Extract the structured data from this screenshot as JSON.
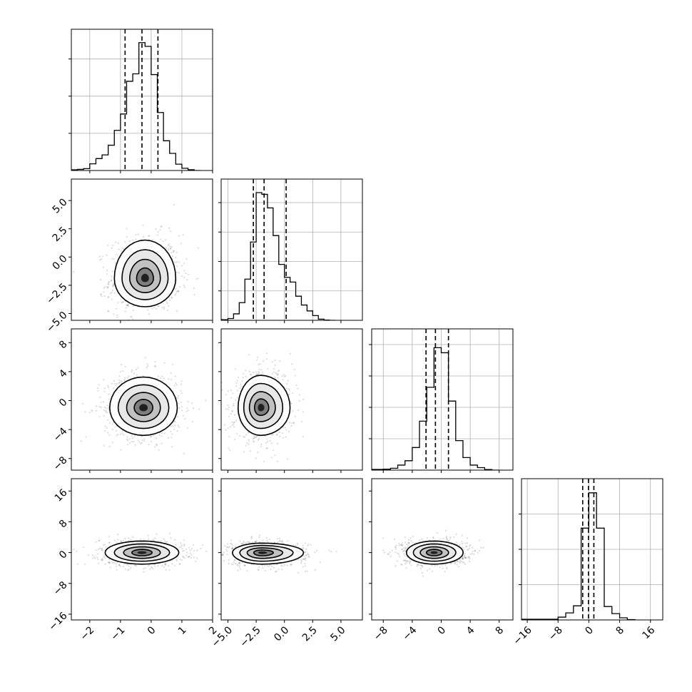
{
  "chart_data": {
    "type": "corner",
    "title": "",
    "grid": true,
    "num_params": 4,
    "quantile_lines": "dashed",
    "parameters": [
      {
        "index": 0,
        "range": [
          -2.6,
          2.0
        ],
        "ticks": [
          -2,
          -1,
          0,
          1,
          2
        ],
        "tick_labels": [
          "−2",
          "−1",
          "0",
          "1",
          "2"
        ],
        "quantiles": [
          -0.85,
          -0.3,
          0.22
        ],
        "hist_bins": [
          -2.4,
          -2.2,
          -2.0,
          -1.8,
          -1.6,
          -1.4,
          -1.2,
          -1.0,
          -0.8,
          -0.6,
          -0.4,
          -0.2,
          0.0,
          0.2,
          0.4,
          0.6,
          0.8,
          1.0,
          1.2,
          1.4
        ],
        "hist_counts": [
          0.3,
          0.5,
          1.8,
          3.2,
          4.2,
          6.8,
          10.8,
          15.2,
          24.0,
          26.0,
          34.4,
          33.4,
          25.8,
          15.6,
          8.0,
          4.6,
          1.7,
          0.6,
          0.2,
          0.0
        ]
      },
      {
        "index": 1,
        "range": [
          -5.6,
          6.9
        ],
        "ticks": [
          -5.0,
          -2.5,
          0.0,
          2.5,
          5.0
        ],
        "tick_labels": [
          "−5.0",
          "−2.5",
          "0.0",
          "2.5",
          "5.0"
        ],
        "quantiles": [
          -2.75,
          -1.8,
          0.15
        ],
        "hist_bins": [
          -5.5,
          -5.0,
          -4.5,
          -4.0,
          -3.5,
          -3.0,
          -2.5,
          -2.0,
          -1.5,
          -1.0,
          -0.5,
          0.0,
          0.5,
          1.0,
          1.5,
          2.0,
          2.5,
          3.0,
          3.5,
          4.0
        ],
        "hist_counts": [
          0.2,
          0.6,
          2.2,
          6.0,
          14.0,
          26.6,
          43.4,
          42.8,
          38.2,
          28.8,
          19.0,
          14.6,
          13.0,
          8.2,
          5.2,
          3.2,
          1.6,
          0.4,
          0.1,
          0.0
        ]
      },
      {
        "index": 2,
        "range": [
          -9.6,
          9.9
        ],
        "ticks": [
          -8,
          -4,
          0,
          4,
          8
        ],
        "tick_labels": [
          "−8",
          "−4",
          "0",
          "4",
          "8"
        ],
        "quantiles": [
          -2.1,
          -0.8,
          1.0
        ],
        "hist_bins": [
          -8.0,
          -7.0,
          -6.0,
          -5.0,
          -4.0,
          -3.0,
          -2.0,
          -1.0,
          0.0,
          1.0,
          2.0,
          3.0,
          4.0,
          5.0,
          6.0,
          7.0
        ],
        "hist_counts": [
          0.3,
          0.6,
          1.6,
          3.0,
          7.2,
          15.6,
          26.4,
          39.0,
          37.4,
          22.0,
          9.4,
          4.0,
          1.6,
          0.8,
          0.2,
          0.0
        ]
      },
      {
        "index": 3,
        "range": [
          -17.5,
          19.2
        ],
        "ticks": [
          -16,
          -8,
          0,
          8,
          16
        ],
        "tick_labels": [
          "−16",
          "−8",
          "0",
          "8",
          "16"
        ],
        "quantiles": [
          -1.6,
          -0.1,
          1.3
        ],
        "hist_bins": [
          -10.0,
          -8.0,
          -6.0,
          -4.0,
          -2.0,
          0.0,
          2.0,
          4.0,
          6.0,
          8.0,
          10.0
        ],
        "hist_counts": [
          0.2,
          0.8,
          2.0,
          4.0,
          26.0,
          36.0,
          26.0,
          3.8,
          1.8,
          0.6,
          0.1
        ]
      }
    ],
    "hist_ylim": [
      [
        0,
        38
      ],
      [
        0,
        48
      ],
      [
        0,
        45
      ],
      [
        0,
        40
      ]
    ],
    "hist_yticks": [
      [
        10,
        20,
        30
      ],
      [
        10,
        20,
        30,
        40
      ],
      [
        10,
        20,
        30,
        40
      ],
      [
        10,
        20,
        30
      ]
    ],
    "pairs": [
      {
        "x": 0,
        "y": 1,
        "center": [
          -0.2,
          -1.9
        ],
        "sigma": [
          0.5,
          1.25
        ],
        "corr": 0.05,
        "skew": [
          0.0,
          0.6
        ]
      },
      {
        "x": 0,
        "y": 2,
        "center": [
          -0.25,
          -1.0
        ],
        "sigma": [
          0.55,
          1.9
        ],
        "corr": 0.0,
        "skew": [
          0.0,
          0.2
        ]
      },
      {
        "x": 0,
        "y": 3,
        "center": [
          -0.3,
          0.0
        ],
        "sigma": [
          0.6,
          1.5
        ],
        "corr": 0.0,
        "skew": [
          0.0,
          0.0
        ]
      },
      {
        "x": 1,
        "y": 2,
        "center": [
          -2.1,
          -1.0
        ],
        "sigma": [
          1.0,
          1.9
        ],
        "corr": 0.1,
        "skew": [
          0.5,
          0.3
        ]
      },
      {
        "x": 1,
        "y": 3,
        "center": [
          -2.0,
          0.0
        ],
        "sigma": [
          1.3,
          1.5
        ],
        "corr": -0.05,
        "skew": [
          0.7,
          -0.3
        ]
      },
      {
        "x": 2,
        "y": 3,
        "center": [
          -1.0,
          0.0
        ],
        "sigma": [
          1.9,
          1.5
        ],
        "corr": 0.0,
        "skew": [
          0.1,
          0.0
        ]
      }
    ]
  }
}
